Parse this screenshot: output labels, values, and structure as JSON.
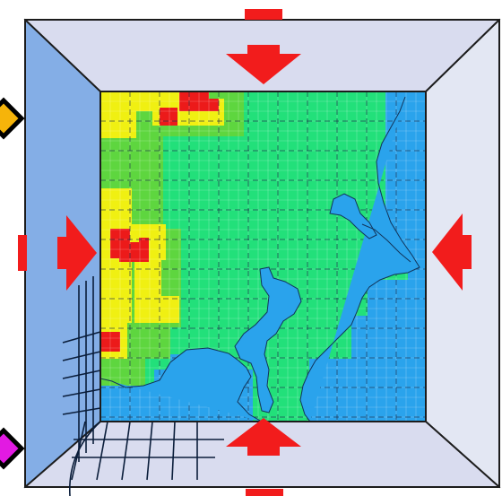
{
  "colors": {
    "page_bg": "#ffffff",
    "frame_top_bottom": "#d9dcef",
    "frame_left": "#84aee6",
    "frame_right": "#e3e7f3",
    "frame_line": "#1c1c1c",
    "arrow": "#f21c1c",
    "sea": "#2aa3ec",
    "land_low": "#22e07a",
    "land_mid": "#5ed63f",
    "land_high": "#f0f012",
    "land_peak": "#ec1a1a",
    "grid_line": "#0a1d3a",
    "coast_line": "#12345a",
    "marker_top": "#f6b40a",
    "marker_bottom": "#e21ae2",
    "marker_outline": "#000000"
  },
  "icons": {
    "arrow_inward": "red-arrow-icon",
    "marker_top": "orange-diamond-icon",
    "marker_bottom": "magenta-diamond-icon"
  }
}
